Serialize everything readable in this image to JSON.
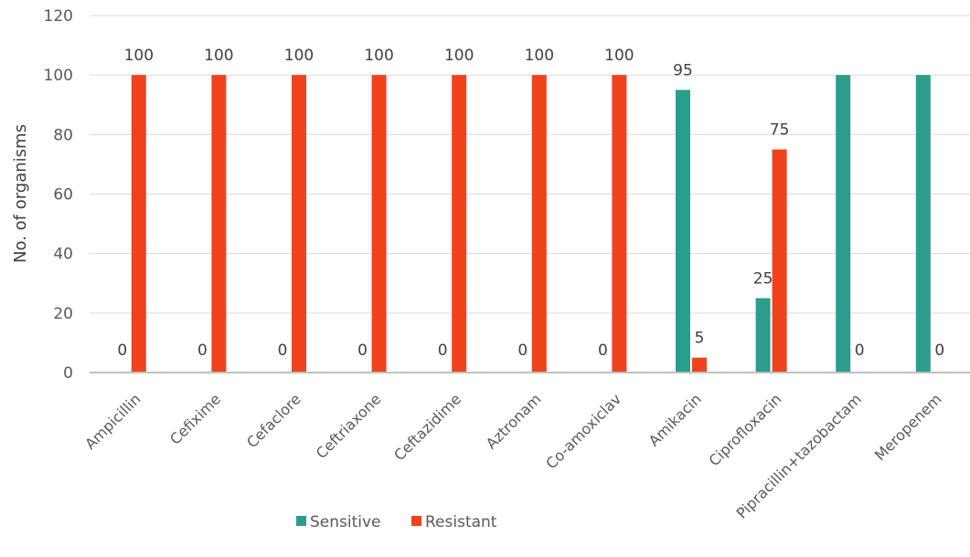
{
  "chart_data": {
    "type": "bar",
    "categories": [
      "Ampicillin",
      "Cefixime",
      "Cefaclore",
      "Ceftriaxone",
      "Ceftazidime",
      "Aztronam",
      "Co-amoxiclav",
      "Amikacin",
      "Ciprofloxacin",
      "Pipracillin+tazobactam",
      "Meropenem"
    ],
    "series": [
      {
        "name": "Sensitive",
        "values": [
          0,
          0,
          0,
          0,
          0,
          0,
          0,
          95,
          25,
          100,
          100
        ],
        "color": "#2a9d8f",
        "show_labels": [
          true,
          true,
          true,
          true,
          true,
          true,
          true,
          true,
          true,
          false,
          false
        ]
      },
      {
        "name": "Resistant",
        "values": [
          100,
          100,
          100,
          100,
          100,
          100,
          100,
          5,
          75,
          0,
          0
        ],
        "color": "#f0421c",
        "show_labels": [
          true,
          true,
          true,
          true,
          true,
          true,
          true,
          true,
          true,
          true,
          true
        ]
      }
    ],
    "ylabel": "No. of organisms",
    "ylim": [
      0,
      120
    ],
    "yticks": [
      0,
      20,
      40,
      60,
      80,
      100,
      120
    ],
    "grid": true,
    "legend_position": "bottom"
  }
}
